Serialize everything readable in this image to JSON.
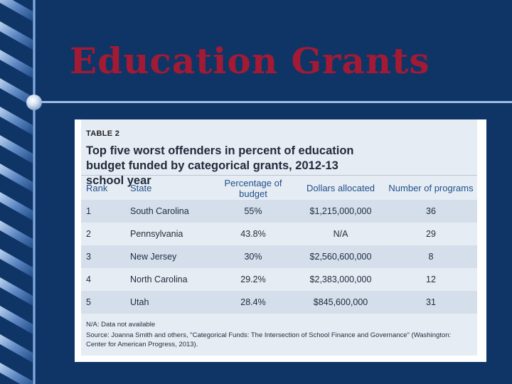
{
  "slide": {
    "title": "Education Grants"
  },
  "table": {
    "number_label": "TABLE 2",
    "heading": "Top five worst offenders in percent of education budget funded by categorical grants, 2012-13 school year",
    "columns": [
      "Rank",
      "State",
      "Percentage of budget",
      "Dollars allocated",
      "Number of programs"
    ],
    "rows": [
      [
        "1",
        "South Carolina",
        "55%",
        "$1,215,000,000",
        "36"
      ],
      [
        "2",
        "Pennsylvania",
        "43.8%",
        "N/A",
        "29"
      ],
      [
        "3",
        "New Jersey",
        "30%",
        "$2,560,600,000",
        "8"
      ],
      [
        "4",
        "North Carolina",
        "29.2%",
        "$2,383,000,000",
        "12"
      ],
      [
        "5",
        "Utah",
        "28.4%",
        "$845,600,000",
        "31"
      ]
    ],
    "note": "N/A: Data not available",
    "source": "Source: Joanna Smith and others, \"Categorical Funds: The Intersection of School Finance and Governance\" (Washington: Center for American Progress, 2013)."
  },
  "colors": {
    "background": "#0f3566",
    "title": "#a31a35",
    "header_text": "#1d4f8c",
    "row_band": "#d4dfeb"
  }
}
